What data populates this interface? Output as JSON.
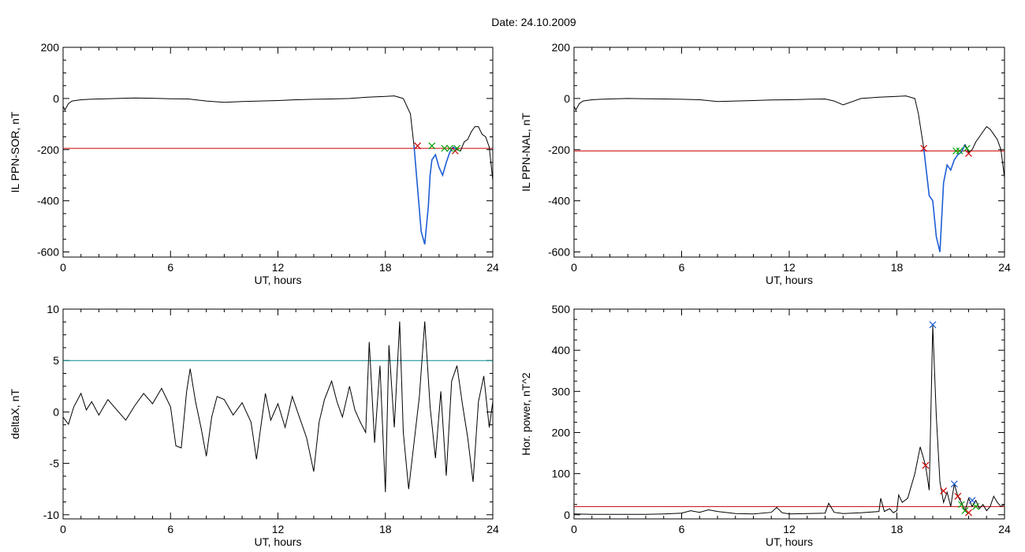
{
  "figure": {
    "title": "Date:  24.10.2009"
  },
  "colors": {
    "threshold_red": "#cc0000",
    "threshold_teal": "#008c8c",
    "highlight_blue": "#1f5fd6",
    "marker_red": "#cc0000",
    "marker_green": "#00a000",
    "marker_blue": "#1f5fd6",
    "trace": "#000000"
  },
  "chart_data": [
    {
      "id": "sor",
      "type": "line",
      "xlabel": "UT, hours",
      "ylabel": "IL PPN-SOR, nT",
      "xlim": [
        0,
        24
      ],
      "ylim": [
        -620,
        200
      ],
      "xticks": [
        0,
        6,
        12,
        18,
        24
      ],
      "yticks": [
        200,
        0,
        -200,
        -400,
        -600
      ],
      "threshold": {
        "y": -195,
        "color": "#cc0000"
      },
      "x": [
        0,
        0.1,
        0.3,
        0.5,
        1,
        1.5,
        2,
        3,
        4,
        5,
        6,
        7,
        8,
        9,
        10,
        11,
        12,
        13,
        14,
        15,
        16,
        17,
        18,
        18.5,
        19,
        19.4,
        19.6,
        19.8,
        20,
        20.2,
        20.4,
        20.5,
        20.6,
        20.8,
        21,
        21.2,
        21.4,
        21.6,
        21.8,
        22,
        22.2,
        22.4,
        22.6,
        22.8,
        23,
        23.2,
        23.4,
        23.6,
        23.8,
        24
      ],
      "y": [
        -30,
        -45,
        -20,
        -10,
        -5,
        -3,
        -2,
        0,
        2,
        1,
        -1,
        -2,
        -10,
        -15,
        -12,
        -10,
        -8,
        -5,
        -3,
        -2,
        0,
        5,
        8,
        10,
        0,
        -60,
        -185,
        -350,
        -520,
        -570,
        -420,
        -300,
        -240,
        -220,
        -270,
        -300,
        -250,
        -210,
        -190,
        -200,
        -205,
        -170,
        -160,
        -130,
        -110,
        -110,
        -140,
        -150,
        -190,
        -320
      ],
      "highlight": {
        "from": 19.6,
        "to": 22.0
      },
      "markers": [
        {
          "x": 19.8,
          "y": -185,
          "color": "#cc0000"
        },
        {
          "x": 20.6,
          "y": -185,
          "color": "#00a000"
        },
        {
          "x": 21.3,
          "y": -195,
          "color": "#00a000"
        },
        {
          "x": 21.6,
          "y": -195,
          "color": "#00a000"
        },
        {
          "x": 21.9,
          "y": -205,
          "color": "#cc0000"
        },
        {
          "x": 22.0,
          "y": -195,
          "color": "#00a000"
        }
      ]
    },
    {
      "id": "nal",
      "type": "line",
      "xlabel": "UT, hours",
      "ylabel": "IL PPN-NAL, nT",
      "xlim": [
        0,
        24
      ],
      "ylim": [
        -620,
        200
      ],
      "xticks": [
        0,
        6,
        12,
        18,
        24
      ],
      "yticks": [
        200,
        0,
        -200,
        -400,
        -600
      ],
      "threshold": {
        "y": -205,
        "color": "#cc0000"
      },
      "x": [
        0,
        0.1,
        0.3,
        0.5,
        1,
        1.5,
        2,
        3,
        4,
        5,
        6,
        7,
        8,
        9,
        10,
        11,
        12,
        13,
        14,
        14.5,
        15,
        16,
        17,
        18,
        18.5,
        19,
        19.2,
        19.5,
        19.8,
        20,
        20.2,
        20.4,
        20.6,
        20.8,
        21,
        21.2,
        21.4,
        21.6,
        21.8,
        22,
        22.2,
        22.4,
        22.6,
        22.8,
        23,
        23.2,
        23.4,
        23.6,
        23.8,
        24
      ],
      "y": [
        -30,
        -45,
        -20,
        -10,
        -5,
        -3,
        -2,
        0,
        -1,
        -2,
        -3,
        -5,
        -12,
        -10,
        -8,
        -6,
        -5,
        -3,
        -2,
        -10,
        -25,
        0,
        5,
        8,
        10,
        0,
        -60,
        -195,
        -380,
        -400,
        -540,
        -600,
        -330,
        -260,
        -280,
        -240,
        -220,
        -210,
        -180,
        -210,
        -200,
        -170,
        -150,
        -130,
        -110,
        -120,
        -140,
        -160,
        -200,
        -310
      ],
      "highlight": {
        "from": 19.5,
        "to": 21.8
      },
      "markers": [
        {
          "x": 19.5,
          "y": -195,
          "color": "#cc0000"
        },
        {
          "x": 21.3,
          "y": -205,
          "color": "#00a000"
        },
        {
          "x": 21.5,
          "y": -205,
          "color": "#00a000"
        },
        {
          "x": 21.9,
          "y": -195,
          "color": "#00a000"
        },
        {
          "x": 22.0,
          "y": -215,
          "color": "#cc0000"
        }
      ]
    },
    {
      "id": "deltax",
      "type": "line",
      "xlabel": "UT, hours",
      "ylabel": "deltaX, nT",
      "xlim": [
        0,
        24
      ],
      "ylim": [
        -10.4,
        10
      ],
      "xticks": [
        0,
        6,
        12,
        18,
        24
      ],
      "yticks": [
        10,
        5,
        0,
        -5,
        -10
      ],
      "threshold": {
        "y": 5,
        "color": "#008c8c"
      },
      "x": [
        0,
        0.3,
        0.6,
        1,
        1.3,
        1.6,
        2,
        2.5,
        3,
        3.5,
        4,
        4.5,
        5,
        5.5,
        6,
        6.3,
        6.6,
        6.9,
        7.1,
        7.4,
        7.7,
        8,
        8.3,
        8.6,
        9,
        9.5,
        10,
        10.5,
        10.8,
        11,
        11.3,
        11.6,
        12,
        12.4,
        12.8,
        13.2,
        13.6,
        14,
        14.3,
        14.6,
        15,
        15.3,
        15.6,
        16,
        16.3,
        16.6,
        16.9,
        17.1,
        17.4,
        17.7,
        18,
        18.2,
        18.5,
        18.8,
        19,
        19.3,
        19.6,
        19.9,
        20.2,
        20.5,
        20.8,
        21.1,
        21.4,
        21.7,
        22,
        22.3,
        22.6,
        22.9,
        23.2,
        23.5,
        23.8,
        24
      ],
      "y": [
        -0.5,
        -1.2,
        0.5,
        1.8,
        0.2,
        1.0,
        -0.3,
        1.2,
        0.2,
        -0.8,
        0.6,
        1.8,
        0.8,
        2.3,
        0.5,
        -3.3,
        -3.5,
        2.0,
        4.2,
        1.0,
        -1.5,
        -4.3,
        -0.5,
        1.5,
        1.2,
        -0.3,
        0.9,
        -1.0,
        -4.6,
        -2.0,
        1.8,
        -0.8,
        0.8,
        -1.5,
        1.5,
        -0.5,
        -2.5,
        -5.8,
        -1.0,
        1.2,
        3.0,
        1.0,
        -0.5,
        2.5,
        0.2,
        -1.0,
        -2.0,
        6.8,
        -3.0,
        4.5,
        -7.8,
        6.5,
        -1.5,
        8.8,
        -2.0,
        -7.5,
        -3.0,
        1.5,
        8.8,
        0.5,
        -4.5,
        2.0,
        -6.2,
        3.0,
        4.5,
        0.8,
        -2.5,
        -6.8,
        1.0,
        3.5,
        -1.5,
        1.0
      ],
      "highlight": null,
      "markers": []
    },
    {
      "id": "power",
      "type": "line",
      "xlabel": "UT, hours",
      "ylabel": "Hor. power, nT^2",
      "xlim": [
        0,
        24
      ],
      "ylim": [
        -10,
        500
      ],
      "xticks": [
        0,
        6,
        12,
        18,
        24
      ],
      "yticks": [
        500,
        400,
        300,
        200,
        100,
        0
      ],
      "threshold": {
        "y": 20,
        "color": "#cc0000"
      },
      "x": [
        0,
        1,
        2,
        3,
        4,
        5,
        6,
        6.5,
        7,
        7.5,
        8,
        9,
        10,
        11,
        11.3,
        11.6,
        12,
        13,
        14,
        14.2,
        14.5,
        15,
        16,
        17,
        17.1,
        17.3,
        17.6,
        17.8,
        18,
        18.1,
        18.3,
        18.6,
        19,
        19.3,
        19.6,
        19.8,
        20,
        20.2,
        20.4,
        20.6,
        20.8,
        21,
        21.2,
        21.4,
        21.6,
        21.8,
        22,
        22.2,
        22.4,
        22.6,
        22.8,
        23,
        23.2,
        23.4,
        23.6,
        23.8,
        24
      ],
      "y": [
        2,
        1,
        1,
        1,
        1,
        2,
        4,
        10,
        6,
        12,
        8,
        3,
        2,
        6,
        18,
        5,
        2,
        3,
        4,
        28,
        6,
        3,
        5,
        8,
        40,
        8,
        15,
        5,
        10,
        48,
        30,
        40,
        100,
        165,
        120,
        60,
        460,
        240,
        80,
        30,
        55,
        20,
        75,
        45,
        30,
        10,
        40,
        20,
        35,
        15,
        25,
        10,
        20,
        45,
        30,
        20,
        25
      ],
      "highlight": null,
      "markers": [
        {
          "x": 19.6,
          "y": 120,
          "color": "#cc0000"
        },
        {
          "x": 20.0,
          "y": 462,
          "color": "#1f5fd6"
        },
        {
          "x": 20.6,
          "y": 58,
          "color": "#cc0000"
        },
        {
          "x": 21.2,
          "y": 75,
          "color": "#1f5fd6"
        },
        {
          "x": 21.4,
          "y": 45,
          "color": "#cc0000"
        },
        {
          "x": 21.6,
          "y": 25,
          "color": "#00a000"
        },
        {
          "x": 21.8,
          "y": 10,
          "color": "#00a000"
        },
        {
          "x": 22.0,
          "y": 5,
          "color": "#cc0000"
        },
        {
          "x": 22.2,
          "y": 35,
          "color": "#1f5fd6"
        },
        {
          "x": 22.4,
          "y": 20,
          "color": "#00a000"
        }
      ]
    }
  ]
}
